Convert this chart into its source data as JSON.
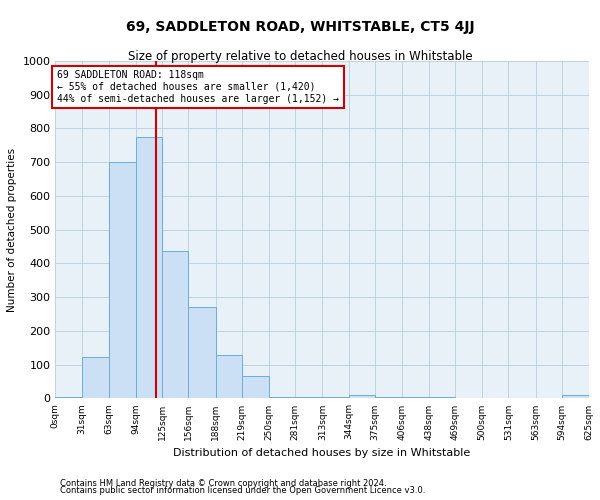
{
  "title": "69, SADDLETON ROAD, WHITSTABLE, CT5 4JJ",
  "subtitle": "Size of property relative to detached houses in Whitstable",
  "xlabel": "Distribution of detached houses by size in Whitstable",
  "ylabel": "Number of detached properties",
  "bin_edges": [
    0,
    31,
    63,
    94,
    125,
    156,
    188,
    219,
    250,
    281,
    313,
    344,
    375,
    406,
    438,
    469,
    500,
    531,
    563,
    594,
    625
  ],
  "bar_heights": [
    3,
    122,
    700,
    775,
    438,
    270,
    130,
    68,
    5,
    5,
    5,
    10,
    3,
    3,
    3,
    2,
    1,
    1,
    1,
    10
  ],
  "bar_color": "#cce0f5",
  "bar_edgecolor": "#6baed6",
  "property_size": 118,
  "vline_color": "#cc0000",
  "annotation_text": "69 SADDLETON ROAD: 118sqm\n← 55% of detached houses are smaller (1,420)\n44% of semi-detached houses are larger (1,152) →",
  "annotation_box_facecolor": "#ffffff",
  "annotation_box_edgecolor": "#cc0000",
  "ylim": [
    0,
    1000
  ],
  "yticks": [
    0,
    100,
    200,
    300,
    400,
    500,
    600,
    700,
    800,
    900,
    1000
  ],
  "footer1": "Contains HM Land Registry data © Crown copyright and database right 2024.",
  "footer2": "Contains public sector information licensed under the Open Government Licence v3.0.",
  "background_color": "#ffffff",
  "plot_bg_color": "#e8f0f8",
  "grid_color": "#b8cfe0",
  "title_fontsize": 10,
  "subtitle_fontsize": 8.5,
  "ylabel_fontsize": 7.5,
  "xlabel_fontsize": 8,
  "ytick_fontsize": 8,
  "xtick_fontsize": 6.5,
  "annotation_fontsize": 7,
  "footer_fontsize": 6
}
